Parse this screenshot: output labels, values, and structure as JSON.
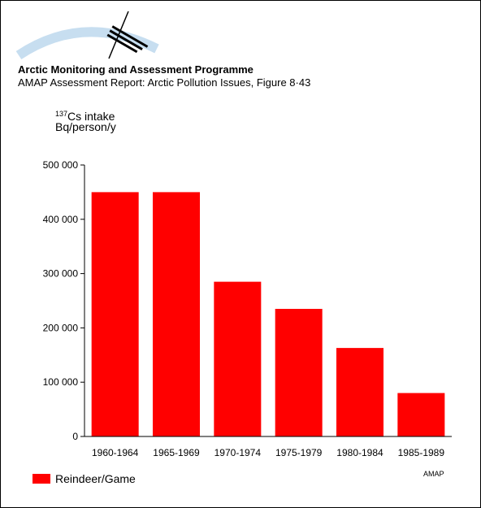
{
  "header": {
    "logo_text": "AMAP",
    "org": "Arctic Monitoring and Assessment Programme",
    "report": "AMAP Assessment Report: Arctic Pollution Issues, Figure 8·43"
  },
  "colors": {
    "bar": "#ff0000"
  },
  "credit": "AMAP",
  "chart_data": {
    "type": "bar",
    "title": "",
    "ylabel_superscript": "137",
    "ylabel_main": "Cs intake",
    "ylabel_line2": "Bq/person/y",
    "xlabel": "",
    "categories": [
      "1960-1964",
      "1965-1969",
      "1970-1974",
      "1975-1979",
      "1980-1984",
      "1985-1989"
    ],
    "series": [
      {
        "name": "Reindeer/Game",
        "values": [
          450000,
          450000,
          285000,
          235000,
          163000,
          80000
        ]
      }
    ],
    "ylim": [
      0,
      500000
    ],
    "yticks": [
      0,
      100000,
      200000,
      300000,
      400000,
      500000
    ],
    "ytick_labels": [
      "0",
      "100 000",
      "200 000",
      "300 000",
      "400 000",
      "500 000"
    ],
    "grid": false,
    "legend_position": "bottom-left"
  }
}
